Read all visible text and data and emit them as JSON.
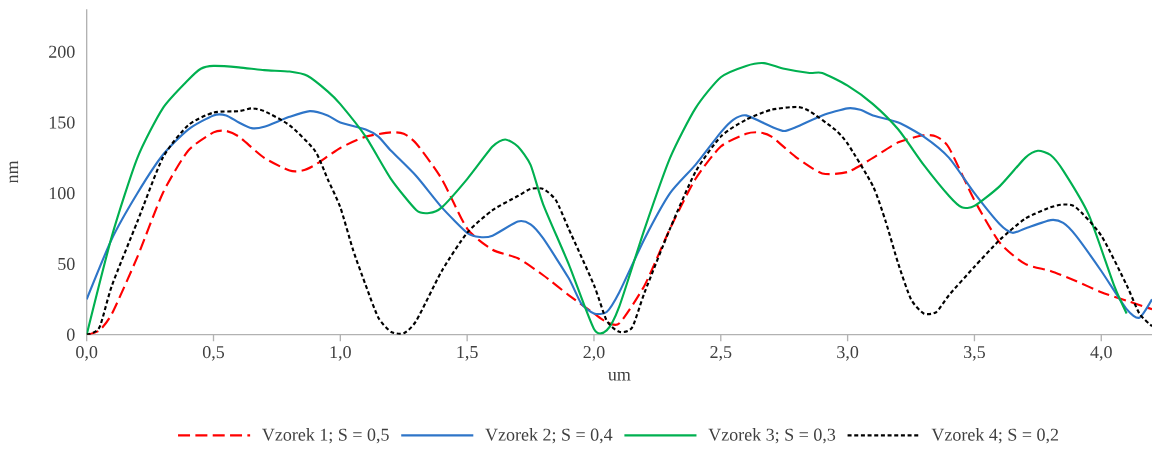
{
  "chart_data": {
    "type": "line",
    "xlabel": "um",
    "ylabel": "nm",
    "xlim": [
      0,
      4.2
    ],
    "ylim": [
      0,
      230
    ],
    "xticks": [
      {
        "value": 0,
        "label": "0,0"
      },
      {
        "value": 0.5,
        "label": "0,5"
      },
      {
        "value": 1,
        "label": "1,0"
      },
      {
        "value": 1.5,
        "label": "1,5"
      },
      {
        "value": 2,
        "label": "2,0"
      },
      {
        "value": 2.5,
        "label": "2,5"
      },
      {
        "value": 3,
        "label": "3,0"
      },
      {
        "value": 3.5,
        "label": "3,5"
      },
      {
        "value": 4,
        "label": "4,0"
      }
    ],
    "yticks": [
      0,
      50,
      100,
      150,
      200
    ],
    "grid": false,
    "legend": "bottom",
    "marker": "none",
    "series": [
      {
        "name": "Vzorek 1; S = 0,5",
        "color": "#ff0000",
        "line_style": "dashed",
        "x": [
          0,
          0.05,
          0.1,
          0.2,
          0.3,
          0.4,
          0.5,
          0.55,
          0.6,
          0.7,
          0.8,
          0.85,
          0.9,
          1.0,
          1.1,
          1.2,
          1.25,
          1.3,
          1.4,
          1.5,
          1.6,
          1.7,
          1.8,
          1.9,
          2.0,
          2.05,
          2.1,
          2.2,
          2.3,
          2.4,
          2.5,
          2.6,
          2.65,
          2.7,
          2.8,
          2.9,
          3.0,
          3.1,
          3.2,
          3.3,
          3.35,
          3.4,
          3.5,
          3.6,
          3.7,
          3.8,
          3.9,
          4.0,
          4.1,
          4.2
        ],
        "values": [
          0,
          3,
          15,
          55,
          100,
          130,
          143,
          144,
          140,
          125,
          116,
          116,
          120,
          132,
          140,
          143,
          142,
          135,
          110,
          75,
          60,
          54,
          42,
          28,
          15,
          9,
          8,
          35,
          75,
          110,
          133,
          142,
          143,
          140,
          125,
          114,
          115,
          125,
          136,
          141,
          140,
          132,
          95,
          65,
          50,
          45,
          38,
          30,
          24,
          18
        ]
      },
      {
        "name": "Vzorek 2; S = 0,4",
        "color": "#2e75c8",
        "line_style": "solid",
        "x": [
          0,
          0.1,
          0.2,
          0.3,
          0.4,
          0.5,
          0.55,
          0.6,
          0.65,
          0.7,
          0.8,
          0.88,
          0.95,
          1.0,
          1.1,
          1.15,
          1.2,
          1.3,
          1.4,
          1.5,
          1.55,
          1.6,
          1.7,
          1.75,
          1.8,
          1.9,
          1.95,
          2.0,
          2.05,
          2.1,
          2.2,
          2.3,
          2.4,
          2.5,
          2.55,
          2.6,
          2.7,
          2.75,
          2.8,
          2.9,
          3.0,
          3.05,
          3.1,
          3.2,
          3.3,
          3.4,
          3.5,
          3.6,
          3.65,
          3.7,
          3.8,
          3.85,
          3.9,
          4.0,
          4.1,
          4.15,
          4.2
        ],
        "values": [
          25,
          68,
          100,
          127,
          145,
          155,
          155,
          150,
          146,
          147,
          154,
          158,
          155,
          150,
          145,
          140,
          130,
          112,
          90,
          72,
          69,
          70,
          80,
          78,
          68,
          40,
          22,
          15,
          16,
          30,
          68,
          100,
          120,
          143,
          152,
          155,
          147,
          144,
          147,
          155,
          160,
          159,
          155,
          150,
          140,
          125,
          100,
          78,
          72,
          75,
          81,
          79,
          70,
          45,
          18,
          12,
          25
        ]
      },
      {
        "name": "Vzorek 3; S = 0,3",
        "color": "#00b050",
        "line_style": "solid",
        "x": [
          0,
          0.1,
          0.2,
          0.3,
          0.4,
          0.45,
          0.5,
          0.6,
          0.7,
          0.8,
          0.87,
          0.95,
          1.0,
          1.1,
          1.2,
          1.3,
          1.35,
          1.4,
          1.5,
          1.6,
          1.65,
          1.7,
          1.75,
          1.8,
          1.9,
          2.0,
          2.05,
          2.1,
          2.2,
          2.3,
          2.4,
          2.5,
          2.6,
          2.67,
          2.75,
          2.85,
          2.9,
          3.0,
          3.1,
          3.2,
          3.3,
          3.4,
          3.45,
          3.5,
          3.6,
          3.7,
          3.75,
          3.8,
          3.85,
          3.95,
          4.05,
          4.1
        ],
        "values": [
          0,
          70,
          125,
          160,
          180,
          188,
          190,
          189,
          187,
          186,
          183,
          172,
          163,
          140,
          110,
          88,
          86,
          90,
          110,
          133,
          138,
          133,
          120,
          92,
          50,
          4,
          3,
          20,
          75,
          125,
          160,
          182,
          190,
          192,
          188,
          185,
          185,
          176,
          163,
          145,
          120,
          98,
          90,
          91,
          105,
          125,
          130,
          127,
          116,
          85,
          35,
          15
        ]
      },
      {
        "name": "Vzorek 4; S = 0,2",
        "color": "#000000",
        "line_style": "dotted",
        "x": [
          0,
          0.05,
          0.1,
          0.2,
          0.3,
          0.4,
          0.5,
          0.6,
          0.65,
          0.7,
          0.8,
          0.9,
          0.95,
          1.0,
          1.05,
          1.1,
          1.15,
          1.2,
          1.25,
          1.3,
          1.4,
          1.5,
          1.6,
          1.7,
          1.75,
          1.8,
          1.85,
          1.9,
          2.0,
          2.05,
          2.1,
          2.15,
          2.2,
          2.3,
          2.4,
          2.5,
          2.6,
          2.7,
          2.8,
          2.85,
          2.95,
          3.0,
          3.1,
          3.15,
          3.2,
          3.25,
          3.3,
          3.35,
          3.4,
          3.5,
          3.6,
          3.7,
          3.8,
          3.85,
          3.9,
          4.0,
          4.1,
          4.15,
          4.2
        ],
        "values": [
          0,
          5,
          35,
          80,
          125,
          148,
          157,
          158,
          160,
          158,
          148,
          130,
          110,
          90,
          60,
          35,
          12,
          2,
          1,
          10,
          45,
          72,
          88,
          98,
          103,
          103,
          95,
          75,
          35,
          10,
          2,
          5,
          30,
          75,
          115,
          140,
          152,
          159,
          161,
          158,
          145,
          135,
          105,
          80,
          50,
          25,
          15,
          16,
          28,
          48,
          67,
          82,
          90,
          92,
          90,
          70,
          35,
          15,
          6
        ]
      }
    ]
  }
}
